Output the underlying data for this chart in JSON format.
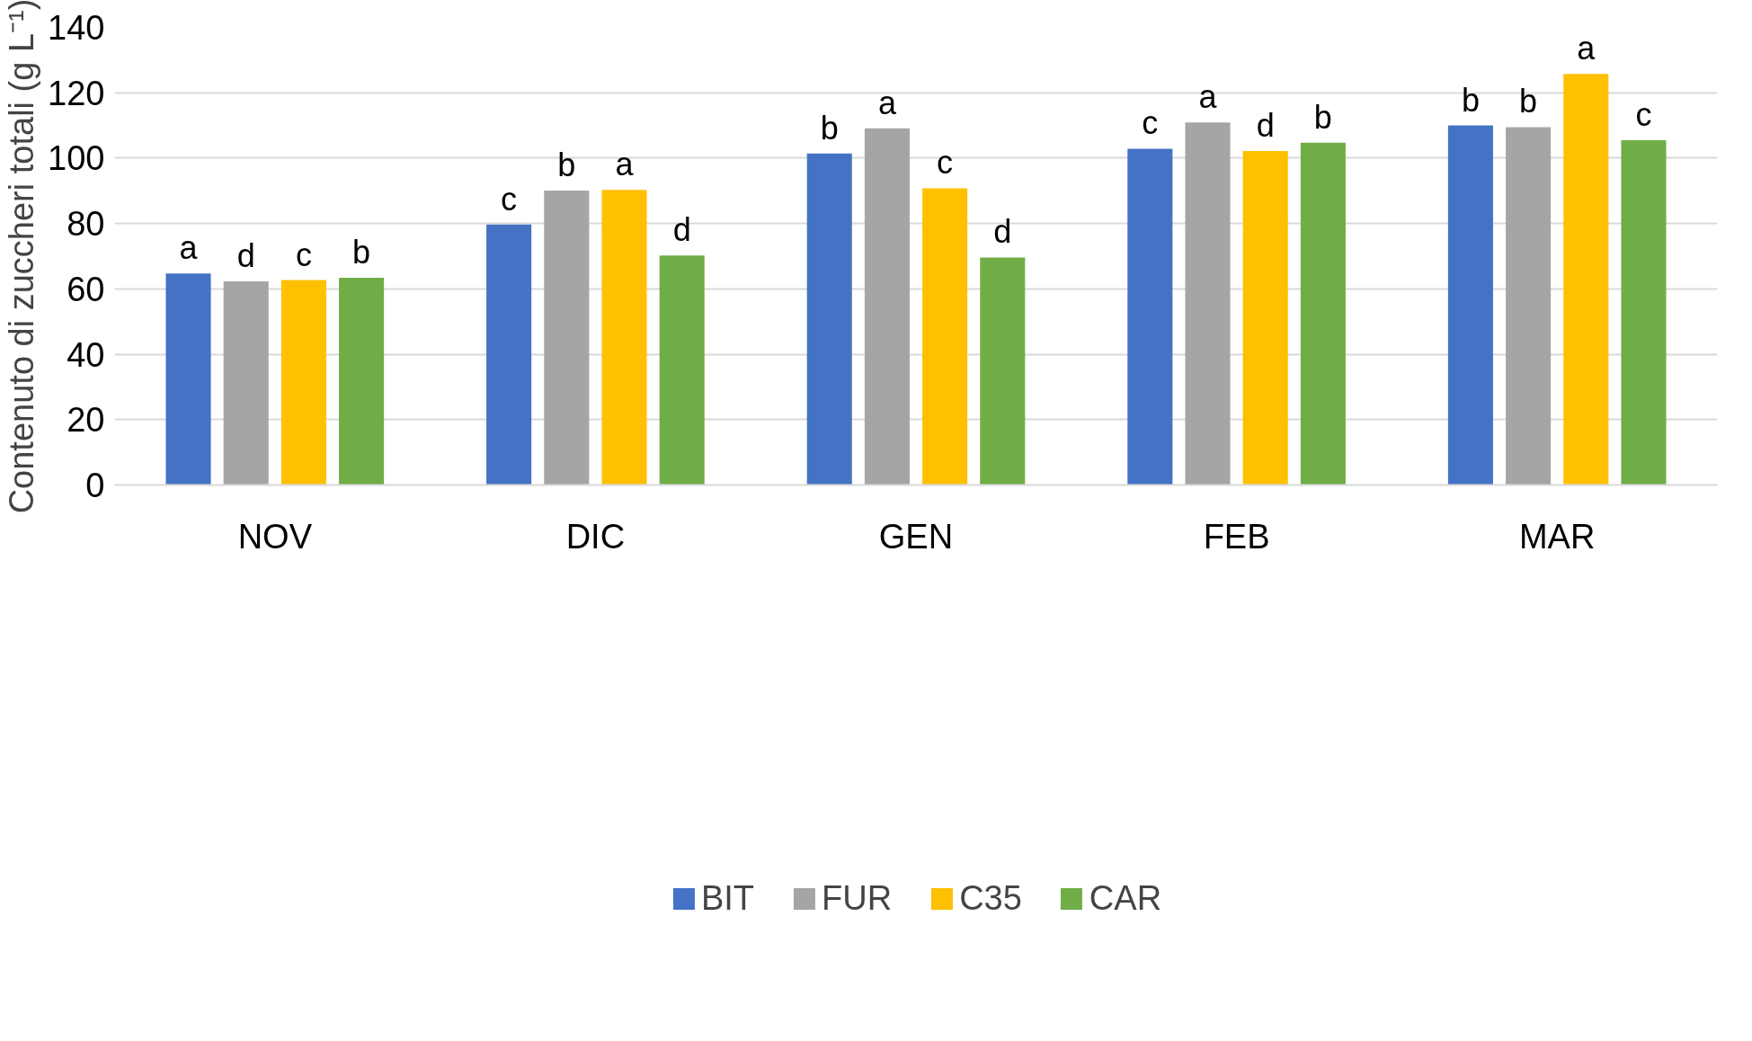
{
  "chart_data": {
    "type": "bar",
    "ylabel": "Contenuto di zuccheri totali (g L⁻¹)",
    "categories": [
      "NOV",
      "DIC",
      "GEN",
      "FEB",
      "MAR"
    ],
    "series": [
      {
        "name": "BIT",
        "color": "#4472c4",
        "values": [
          64.7,
          79.7,
          101.4,
          102.9,
          110.0
        ],
        "value_labels": [
          "a",
          "c",
          "b",
          "c",
          "b"
        ]
      },
      {
        "name": "FUR",
        "color": "#a5a5a5",
        "values": [
          62.3,
          90.1,
          109.1,
          110.9,
          109.5
        ],
        "value_labels": [
          "d",
          "b",
          "a",
          "a",
          "b"
        ]
      },
      {
        "name": "C35",
        "color": "#ffc000",
        "values": [
          62.7,
          90.3,
          90.8,
          102.2,
          125.8
        ],
        "value_labels": [
          "c",
          "a",
          "c",
          "d",
          "a"
        ]
      },
      {
        "name": "CAR",
        "color": "#70ad47",
        "values": [
          63.4,
          70.2,
          69.6,
          104.7,
          105.5
        ],
        "value_labels": [
          "b",
          "d",
          "d",
          "b",
          "c"
        ]
      }
    ],
    "ylim": [
      0,
      140
    ],
    "yticks": [
      0,
      20,
      40,
      60,
      80,
      100,
      120,
      140
    ],
    "grid": "y",
    "legend": "bottom"
  }
}
